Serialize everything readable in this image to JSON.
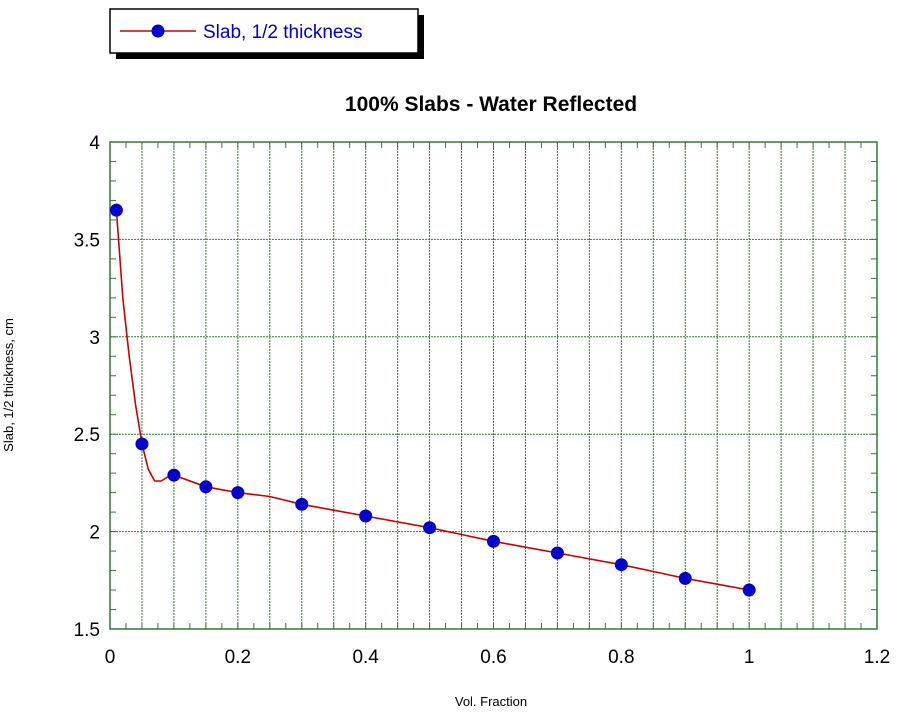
{
  "chart_data": {
    "type": "line",
    "title": "100% Slabs - Water Reflected",
    "xlabel": "Vol. Fraction",
    "ylabel": "Slab, 1/2 thickness, cm",
    "xlim": [
      0,
      1.2
    ],
    "ylim": [
      1.5,
      4
    ],
    "x_ticks": [
      "0",
      "0.2",
      "0.4",
      "0.6",
      "0.8",
      "1",
      "1.2"
    ],
    "y_ticks": [
      "1.5",
      "2",
      "2.5",
      "3",
      "3.5",
      "4"
    ],
    "x_major_step": 0.05,
    "y_major_step": 0.5,
    "grid": true,
    "legend_position": "top-left",
    "colors": {
      "line": "#cc0000",
      "marker": "#0000cc",
      "grid": "#2e7d32",
      "legend_text": "#0000cc"
    },
    "series": [
      {
        "name": "Slab, 1/2 thickness",
        "x": [
          0.01,
          0.05,
          0.1,
          0.15,
          0.2,
          0.3,
          0.4,
          0.5,
          0.6,
          0.7,
          0.8,
          0.9,
          1.0
        ],
        "y": [
          3.65,
          2.45,
          2.29,
          2.23,
          2.2,
          2.14,
          2.08,
          2.02,
          1.95,
          1.89,
          1.83,
          1.76,
          1.7
        ],
        "curve_x": [
          0.01,
          0.02,
          0.03,
          0.04,
          0.05,
          0.06,
          0.07,
          0.08,
          0.09,
          0.1,
          0.15,
          0.2,
          0.25,
          0.3,
          0.35,
          0.4,
          0.45,
          0.5,
          0.55,
          0.6,
          0.65,
          0.7,
          0.75,
          0.8,
          0.85,
          0.9,
          0.95,
          1.0
        ],
        "curve_y": [
          3.65,
          3.2,
          2.9,
          2.65,
          2.45,
          2.32,
          2.26,
          2.26,
          2.28,
          2.29,
          2.23,
          2.2,
          2.18,
          2.14,
          2.11,
          2.08,
          2.05,
          2.02,
          1.985,
          1.95,
          1.92,
          1.89,
          1.86,
          1.83,
          1.795,
          1.76,
          1.73,
          1.7
        ]
      }
    ]
  }
}
